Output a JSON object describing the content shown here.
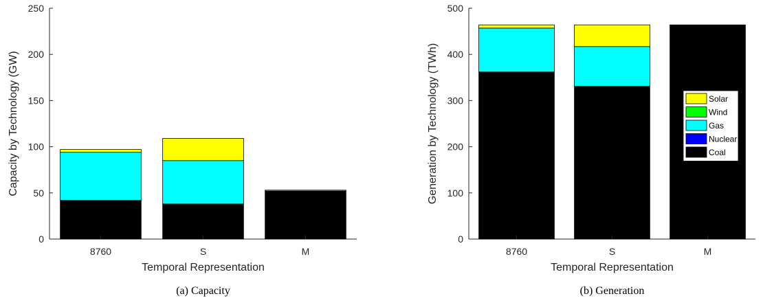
{
  "colors": {
    "Solar": "#ffff00",
    "Wind": "#00ff00",
    "Gas": "#00ffff",
    "Nuclear": "#0000ff",
    "Coal": "#000000"
  },
  "legend_order": [
    "Solar",
    "Wind",
    "Gas",
    "Nuclear",
    "Coal"
  ],
  "chart_data": [
    {
      "type": "bar",
      "stacked": true,
      "caption": "(a)  Capacity",
      "xlabel": "Temporal Representation",
      "ylabel": "Capacity by Technology (GW)",
      "categories": [
        "8760",
        "S",
        "M"
      ],
      "ylim": [
        0,
        250
      ],
      "yticks": [
        0,
        50,
        100,
        150,
        200,
        250
      ],
      "grid": false,
      "legend": null,
      "series": [
        {
          "name": "Coal",
          "values": [
            42,
            38,
            52
          ]
        },
        {
          "name": "Nuclear",
          "values": [
            0,
            0,
            0
          ]
        },
        {
          "name": "Gas",
          "values": [
            52,
            47,
            1
          ]
        },
        {
          "name": "Wind",
          "values": [
            0,
            0,
            0
          ]
        },
        {
          "name": "Solar",
          "values": [
            3,
            24,
            0
          ]
        }
      ]
    },
    {
      "type": "bar",
      "stacked": true,
      "caption": "(b)  Generation",
      "xlabel": "Temporal Representation",
      "ylabel": "Generation by Technology (TWh)",
      "categories": [
        "8760",
        "S",
        "M"
      ],
      "ylim": [
        0,
        500
      ],
      "yticks": [
        0,
        100,
        200,
        300,
        400,
        500
      ],
      "grid": false,
      "legend": "right",
      "series": [
        {
          "name": "Coal",
          "values": [
            362,
            331,
            463
          ]
        },
        {
          "name": "Nuclear",
          "values": [
            0,
            0,
            0
          ]
        },
        {
          "name": "Gas",
          "values": [
            95,
            86,
            1
          ]
        },
        {
          "name": "Wind",
          "values": [
            0,
            0,
            0
          ]
        },
        {
          "name": "Solar",
          "values": [
            7,
            47,
            0
          ]
        }
      ]
    }
  ]
}
